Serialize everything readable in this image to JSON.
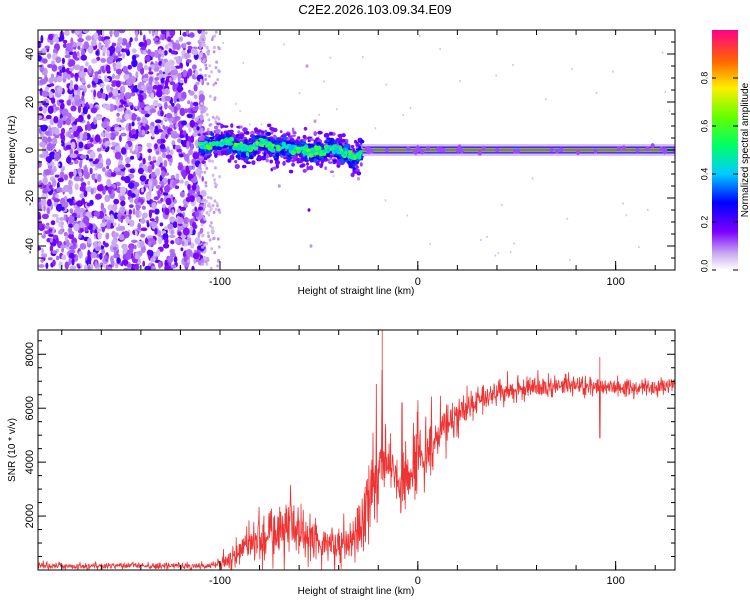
{
  "title": "C2E2.2026.103.09.34.E09",
  "chart_data": [
    {
      "type": "heatmap",
      "xlabel": "Height of straight line (km)",
      "ylabel": "Frequency (Hz)",
      "xlim": [
        -192,
        130
      ],
      "ylim": [
        -50,
        50
      ],
      "x_ticks": [
        -100,
        0,
        100
      ],
      "y_ticks": [
        -40,
        -20,
        0,
        20,
        40
      ],
      "x_tick_labels": [
        "-100",
        "0",
        "100"
      ],
      "y_tick_labels": [
        "-40",
        "-20",
        "0",
        "20",
        "40"
      ],
      "noise_region": {
        "x_range": [
          -192,
          -108
        ],
        "freq_range": [
          -50,
          50
        ]
      },
      "noise_fringe_x_range": [
        -110,
        -100
      ],
      "wander_region": {
        "x_range": [
          -110,
          -28
        ],
        "freq_range": [
          -7,
          9
        ]
      },
      "center_line": {
        "start_km": -28,
        "end_km": 130,
        "freq_hz": 0,
        "amplitude": 0.9,
        "halo_amplitudes": [
          0.05,
          0.2,
          0.45,
          0.9
        ]
      },
      "track_points": [
        [
          -108,
          1.5
        ],
        [
          -104,
          2.2
        ],
        [
          -100,
          2.8
        ],
        [
          -96,
          3.5
        ],
        [
          -92,
          2.4
        ],
        [
          -88,
          0.5
        ],
        [
          -84,
          1.0
        ],
        [
          -80,
          3.5
        ],
        [
          -76,
          2.5
        ],
        [
          -72,
          0.8
        ],
        [
          -68,
          1.8
        ],
        [
          -64,
          0.2
        ],
        [
          -60,
          0.8
        ],
        [
          -56,
          -0.8
        ],
        [
          -52,
          0.2
        ],
        [
          -48,
          -1.0
        ],
        [
          -44,
          1.0
        ],
        [
          -40,
          -0.2
        ],
        [
          -36,
          -1.8
        ],
        [
          -32,
          -3.2
        ],
        [
          -28,
          -0.5
        ],
        [
          -24,
          0.0
        ]
      ],
      "colorbar": {
        "label": "Normalized spectral amplitude",
        "range": [
          0.0,
          1.0
        ],
        "ticks": [
          0.0,
          0.2,
          0.4,
          0.6,
          0.8
        ],
        "tick_labels": [
          "0.0",
          "0.2",
          "0.4",
          "0.6",
          "0.8"
        ],
        "colormap": "rainbow"
      }
    },
    {
      "type": "line",
      "xlabel": "Height of straight line (km)",
      "ylabel": "SNR (10 * v/v)",
      "xlim": [
        -192,
        130
      ],
      "ylim": [
        0,
        8900
      ],
      "x_ticks": [
        -100,
        0,
        100
      ],
      "y_ticks": [
        2000,
        4000,
        6000,
        8000
      ],
      "x_tick_labels": [
        "-100",
        "0",
        "100"
      ],
      "y_tick_labels": [
        "2000",
        "4000",
        "6000",
        "8000"
      ],
      "line_color": "#ee3333",
      "envelope": {
        "x": [
          -192,
          -115,
          -105,
          -95,
          -85,
          -75,
          -65,
          -55,
          -45,
          -35,
          -28,
          -22,
          -16,
          -10,
          -4,
          0,
          6,
          12,
          20,
          30,
          40,
          50,
          60,
          70,
          80,
          90,
          100,
          110,
          120,
          130
        ],
        "mean": [
          150,
          150,
          150,
          450,
          1000,
          1400,
          1800,
          1200,
          900,
          900,
          1800,
          3400,
          4300,
          3300,
          3400,
          4200,
          4600,
          5100,
          5800,
          6300,
          6600,
          6700,
          6800,
          6800,
          6800,
          6800,
          6750,
          6750,
          6750,
          6800
        ],
        "spread": [
          120,
          120,
          120,
          400,
          800,
          1000,
          1300,
          900,
          700,
          700,
          1200,
          1300,
          1300,
          1200,
          1200,
          1200,
          1000,
          800,
          600,
          500,
          400,
          350,
          350,
          350,
          350,
          350,
          350,
          300,
          300,
          300
        ]
      },
      "spikes": [
        {
          "x": -18,
          "y": 8900
        },
        {
          "x": -18,
          "y": 7400
        },
        {
          "x": -21,
          "y": 6900
        },
        {
          "x": -8,
          "y": 6200
        },
        {
          "x": 92,
          "y": 7900
        },
        {
          "x": 92,
          "y": 4900
        },
        {
          "x": 66,
          "y": 7300
        }
      ]
    }
  ]
}
